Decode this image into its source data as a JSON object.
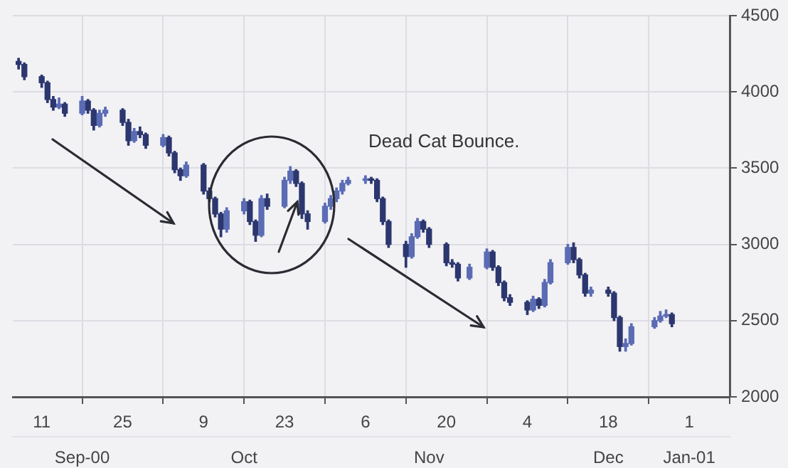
{
  "chart_data": {
    "type": "candlestick",
    "colors": [
      "#2c376f",
      "#2c376f",
      "#2c376f",
      "#2c376f",
      "#2c376f",
      "#5b6cb4",
      "#2c376f",
      "#5b6cb4",
      "#2c376f",
      "#2c376f",
      "#5b6cb4",
      "#5b6cb4",
      "#2c376f",
      "#2c376f",
      "#5b6cb4",
      "#2c376f",
      "#2c376f",
      "#5b6cb4",
      "#2c376f",
      "#2c376f",
      "#2c376f",
      "#5b6cb4",
      "#2c376f",
      "#2c376f",
      "#2c376f",
      "#2c376f",
      "#5b6cb4",
      "#5b6cb4",
      "#2c376f",
      "#2c376f",
      "#5b6cb4",
      "#2c376f",
      "#5b6cb4",
      "#5b6cb4",
      "#2c376f",
      "#2c376f",
      "#2c376f",
      "#5b6cb4",
      "#5b6cb4",
      "#5b6cb4",
      "#5b6cb4",
      "#5b6cb4",
      "#5b6cb4",
      "#2c376f",
      "#2c376f",
      "#2c376f",
      "#2c376f",
      "#2c376f",
      "#5b6cb4",
      "#5b6cb4",
      "#2c376f",
      "#2c376f",
      "#2c376f",
      "#2c376f",
      "#2c376f",
      "#5b6cb4",
      "#5b6cb4",
      "#2c376f",
      "#2c376f",
      "#2c376f",
      "#2c376f",
      "#2c376f",
      "#5b6cb4",
      "#2c376f",
      "#5b6cb4",
      "#5b6cb4",
      "#5b6cb4",
      "#2c376f",
      "#2c376f",
      "#2c376f",
      "#5b6cb4",
      "#2c376f",
      "#2c376f",
      "#2c376f",
      "#5b6cb4",
      "#5b6cb4",
      "#5b6cb4",
      "#5b6cb4",
      "#5b6cb4",
      "#2c376f"
    ],
    "x": [
      "2000-09-07",
      "2000-09-08",
      "2000-09-11",
      "2000-09-12",
      "2000-09-13",
      "2000-09-14",
      "2000-09-15",
      "2000-09-18",
      "2000-09-19",
      "2000-09-20",
      "2000-09-21",
      "2000-09-22",
      "2000-09-25",
      "2000-09-26",
      "2000-09-27",
      "2000-09-28",
      "2000-09-29",
      "2000-10-02",
      "2000-10-03",
      "2000-10-04",
      "2000-10-05",
      "2000-10-06",
      "2000-10-09",
      "2000-10-10",
      "2000-10-11",
      "2000-10-12",
      "2000-10-13",
      "2000-10-16",
      "2000-10-17",
      "2000-10-18",
      "2000-10-19",
      "2000-10-20",
      "2000-10-23",
      "2000-10-24",
      "2000-10-25",
      "2000-10-26",
      "2000-10-27",
      "2000-10-30",
      "2000-10-31",
      "2000-11-01",
      "2000-11-02",
      "2000-11-03",
      "2000-11-06",
      "2000-11-07",
      "2000-11-08",
      "2000-11-09",
      "2000-11-10",
      "2000-11-13",
      "2000-11-14",
      "2000-11-15",
      "2000-11-16",
      "2000-11-17",
      "2000-11-20",
      "2000-11-21",
      "2000-11-22",
      "2000-11-24",
      "2000-11-27",
      "2000-11-28",
      "2000-11-29",
      "2000-11-30",
      "2000-12-01",
      "2000-12-04",
      "2000-12-05",
      "2000-12-06",
      "2000-12-07",
      "2000-12-08",
      "2000-12-11",
      "2000-12-12",
      "2000-12-13",
      "2000-12-14",
      "2000-12-15",
      "2000-12-18",
      "2000-12-19",
      "2000-12-20",
      "2000-12-21",
      "2000-12-22",
      "2000-12-26",
      "2000-12-27",
      "2000-12-28",
      "2000-12-29"
    ],
    "ohlc": [
      [
        4200,
        4220,
        4150,
        4180
      ],
      [
        4180,
        4190,
        4080,
        4100
      ],
      [
        4100,
        4110,
        4030,
        4060
      ],
      [
        4060,
        4070,
        3930,
        3950
      ],
      [
        3950,
        3970,
        3880,
        3900
      ],
      [
        3900,
        3960,
        3890,
        3920
      ],
      [
        3920,
        3930,
        3840,
        3860
      ],
      [
        3860,
        3970,
        3850,
        3940
      ],
      [
        3940,
        3950,
        3860,
        3880
      ],
      [
        3880,
        3890,
        3750,
        3780
      ],
      [
        3780,
        3880,
        3770,
        3860
      ],
      [
        3860,
        3900,
        3840,
        3880
      ],
      [
        3880,
        3890,
        3780,
        3800
      ],
      [
        3800,
        3820,
        3650,
        3680
      ],
      [
        3680,
        3760,
        3670,
        3740
      ],
      [
        3740,
        3770,
        3700,
        3720
      ],
      [
        3720,
        3730,
        3630,
        3650
      ],
      [
        3650,
        3720,
        3640,
        3700
      ],
      [
        3700,
        3710,
        3580,
        3600
      ],
      [
        3600,
        3610,
        3470,
        3490
      ],
      [
        3490,
        3500,
        3420,
        3450
      ],
      [
        3450,
        3540,
        3440,
        3520
      ],
      [
        3520,
        3530,
        3330,
        3350
      ],
      [
        3350,
        3370,
        3280,
        3300
      ],
      [
        3300,
        3310,
        3180,
        3200
      ],
      [
        3200,
        3210,
        3050,
        3100
      ],
      [
        3100,
        3240,
        3080,
        3220
      ],
      [
        3220,
        3300,
        3200,
        3280
      ],
      [
        3280,
        3290,
        3130,
        3150
      ],
      [
        3150,
        3160,
        3020,
        3060
      ],
      [
        3060,
        3320,
        3050,
        3300
      ],
      [
        3300,
        3330,
        3230,
        3250
      ],
      [
        3250,
        3440,
        3240,
        3420
      ],
      [
        3420,
        3510,
        3400,
        3480
      ],
      [
        3480,
        3490,
        3380,
        3400
      ],
      [
        3400,
        3410,
        3170,
        3200
      ],
      [
        3200,
        3220,
        3100,
        3150
      ],
      [
        3150,
        3270,
        3140,
        3250
      ],
      [
        3250,
        3320,
        3230,
        3300
      ],
      [
        3300,
        3370,
        3280,
        3350
      ],
      [
        3350,
        3420,
        3330,
        3400
      ],
      [
        3400,
        3440,
        3390,
        3420
      ],
      [
        3420,
        3450,
        3400,
        3430
      ],
      [
        3430,
        3440,
        3400,
        3420
      ],
      [
        3420,
        3430,
        3280,
        3300
      ],
      [
        3300,
        3310,
        3130,
        3150
      ],
      [
        3150,
        3160,
        2980,
        3000
      ],
      [
        3000,
        3020,
        2850,
        2920
      ],
      [
        2920,
        3070,
        2910,
        3050
      ],
      [
        3050,
        3170,
        3040,
        3150
      ],
      [
        3150,
        3160,
        3080,
        3100
      ],
      [
        3100,
        3110,
        2980,
        3000
      ],
      [
        3000,
        3010,
        2860,
        2880
      ],
      [
        2880,
        2900,
        2850,
        2870
      ],
      [
        2870,
        2880,
        2760,
        2780
      ],
      [
        2780,
        2870,
        2770,
        2850
      ],
      [
        2850,
        2970,
        2840,
        2950
      ],
      [
        2950,
        2960,
        2830,
        2850
      ],
      [
        2850,
        2860,
        2730,
        2750
      ],
      [
        2750,
        2760,
        2630,
        2650
      ],
      [
        2650,
        2670,
        2600,
        2620
      ],
      [
        2620,
        2630,
        2540,
        2570
      ],
      [
        2570,
        2660,
        2560,
        2640
      ],
      [
        2640,
        2650,
        2580,
        2600
      ],
      [
        2600,
        2770,
        2590,
        2750
      ],
      [
        2750,
        2900,
        2740,
        2880
      ],
      [
        2880,
        3000,
        2870,
        2980
      ],
      [
        2980,
        3010,
        2880,
        2900
      ],
      [
        2900,
        2910,
        2780,
        2800
      ],
      [
        2800,
        2810,
        2660,
        2680
      ],
      [
        2680,
        2720,
        2660,
        2700
      ],
      [
        2700,
        2720,
        2660,
        2680
      ],
      [
        2680,
        2690,
        2500,
        2520
      ],
      [
        2520,
        2530,
        2300,
        2330
      ],
      [
        2330,
        2380,
        2300,
        2350
      ],
      [
        2350,
        2480,
        2340,
        2460
      ],
      [
        2460,
        2520,
        2450,
        2500
      ],
      [
        2500,
        2560,
        2490,
        2530
      ],
      [
        2530,
        2570,
        2520,
        2540
      ],
      [
        2540,
        2550,
        2460,
        2480
      ]
    ],
    "xlim": [
      "2000-09-06",
      "2001-01-08"
    ],
    "xticks": [
      {
        "value": "2000-09-11",
        "label": "11"
      },
      {
        "value": "2000-09-25",
        "label": "25"
      },
      {
        "value": "2000-10-09",
        "label": "9"
      },
      {
        "value": "2000-10-23",
        "label": "23"
      },
      {
        "value": "2000-11-06",
        "label": "6"
      },
      {
        "value": "2000-11-20",
        "label": "20"
      },
      {
        "value": "2000-12-04",
        "label": "4"
      },
      {
        "value": "2000-12-18",
        "label": "18"
      },
      {
        "value": "2001-01-01",
        "label": "1"
      }
    ],
    "x2lim": [
      "2000-09-06",
      "2001-01-08"
    ],
    "x2ticks": [
      {
        "value": "2000-09-18",
        "label": "Sep-00"
      },
      {
        "value": "2000-10-16",
        "label": "Oct"
      },
      {
        "value": "2000-11-17",
        "label": "Nov"
      },
      {
        "value": "2000-12-18",
        "label": "Dec"
      },
      {
        "value": "2001-01-01",
        "label": "Jan-01"
      }
    ],
    "ylim": [
      2000,
      4500
    ],
    "yticks": [
      2000,
      2500,
      3000,
      3500,
      4000,
      4500
    ],
    "grid": true,
    "annotations": [
      "Dead Cat Bounce."
    ]
  }
}
